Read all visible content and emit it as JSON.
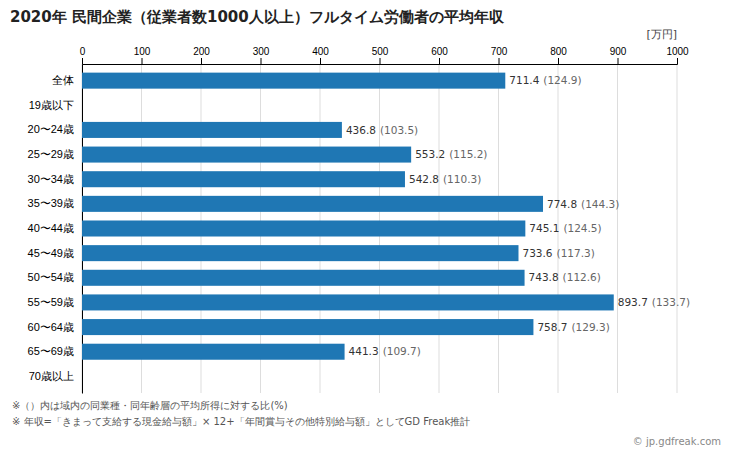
{
  "chart_data": {
    "type": "bar",
    "orientation": "horizontal",
    "title": "2020年 民間企業（従業者数1000人以上）フルタイム労働者の平均年収",
    "xlabel": "[万円]",
    "categories": [
      "全体",
      "19歳以下",
      "20〜24歳",
      "25〜29歳",
      "30〜34歳",
      "35〜39歳",
      "40〜44歳",
      "45〜49歳",
      "50〜54歳",
      "55〜59歳",
      "60〜64歳",
      "65〜69歳",
      "70歳以上"
    ],
    "values": [
      711.4,
      null,
      436.8,
      553.2,
      542.8,
      774.8,
      745.1,
      733.6,
      743.8,
      893.7,
      758.7,
      441.3,
      null
    ],
    "ratios": [
      "(124.9)",
      null,
      "(103.5)",
      "(115.2)",
      "(110.3)",
      "(144.3)",
      "(124.5)",
      "(117.3)",
      "(112.6)",
      "(133.7)",
      "(129.3)",
      "(109.7)",
      null
    ],
    "xlim": [
      0,
      1000
    ],
    "xticks": [
      0,
      100,
      200,
      300,
      400,
      500,
      600,
      700,
      800,
      900,
      1000
    ],
    "grid": true,
    "data_labels": true,
    "annotations": [
      "※（）内は域内の同業種・同年齢層の平均所得に対する比(%)",
      "※ 年収=「きまって支給する現金給与額」× 12+「年間賞与その他特別給与額」としてGD Freak推計",
      "© jp.gdfreak.com"
    ]
  }
}
